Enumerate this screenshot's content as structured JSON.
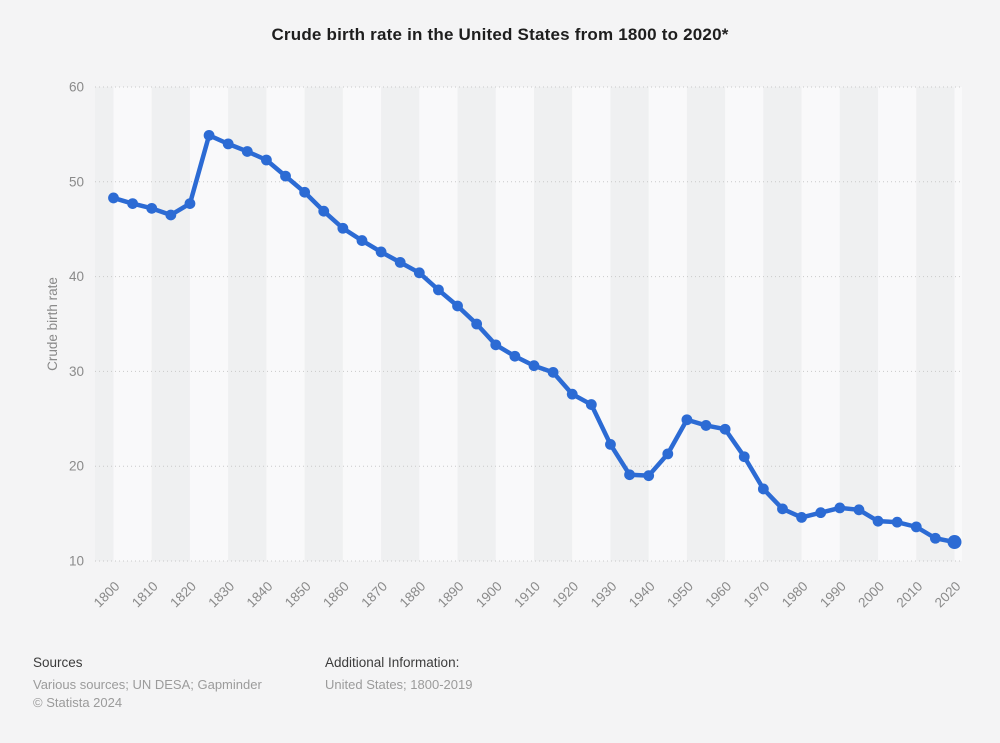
{
  "title": "Crude birth rate in the United States from 1800 to 2020*",
  "chart_data": {
    "type": "line",
    "title": "Crude birth rate in the United States from 1800 to 2020*",
    "ylabel": "Crude birth rate",
    "xlabel": "",
    "x": [
      1800,
      1805,
      1810,
      1815,
      1820,
      1825,
      1830,
      1835,
      1840,
      1845,
      1850,
      1855,
      1860,
      1865,
      1870,
      1875,
      1880,
      1885,
      1890,
      1895,
      1900,
      1905,
      1910,
      1915,
      1920,
      1925,
      1930,
      1935,
      1940,
      1945,
      1950,
      1955,
      1960,
      1965,
      1970,
      1975,
      1980,
      1985,
      1990,
      1995,
      2000,
      2005,
      2010,
      2015,
      2020
    ],
    "values": [
      48.3,
      47.7,
      47.2,
      46.5,
      47.7,
      54.9,
      54.0,
      53.2,
      52.3,
      50.6,
      48.9,
      46.9,
      45.1,
      43.8,
      42.6,
      41.5,
      40.4,
      38.6,
      36.9,
      35.0,
      32.8,
      31.6,
      30.6,
      29.9,
      27.6,
      26.5,
      22.3,
      19.1,
      19.0,
      21.3,
      24.9,
      24.3,
      23.9,
      21.0,
      17.6,
      15.5,
      14.6,
      15.1,
      15.6,
      15.4,
      14.2,
      14.1,
      13.6,
      12.4,
      12.0
    ],
    "xlim": [
      1800,
      2020
    ],
    "ylim": [
      10,
      60
    ],
    "yticks": [
      10,
      20,
      30,
      40,
      50,
      60
    ],
    "xticks": [
      1800,
      1810,
      1820,
      1830,
      1840,
      1850,
      1860,
      1870,
      1880,
      1890,
      1900,
      1910,
      1920,
      1930,
      1940,
      1950,
      1960,
      1970,
      1980,
      1990,
      2000,
      2010,
      2020
    ],
    "grid": "horizontal-dotted",
    "legend": "none",
    "line_color": "#2c6bd4",
    "marker_color": "#2c6bd4",
    "gridline_color": "#c9c9c9",
    "tick_label_color": "#8a8a8a",
    "band_color_dark": "#eff0f1",
    "band_color_light": "#f9f9fa"
  },
  "footer": {
    "sources_label": "Sources",
    "sources_text": "Various sources; UN DESA; Gapminder",
    "copyright": "© Statista 2024",
    "additional_label": "Additional Information:",
    "additional_text": "United States; 1800-2019"
  }
}
